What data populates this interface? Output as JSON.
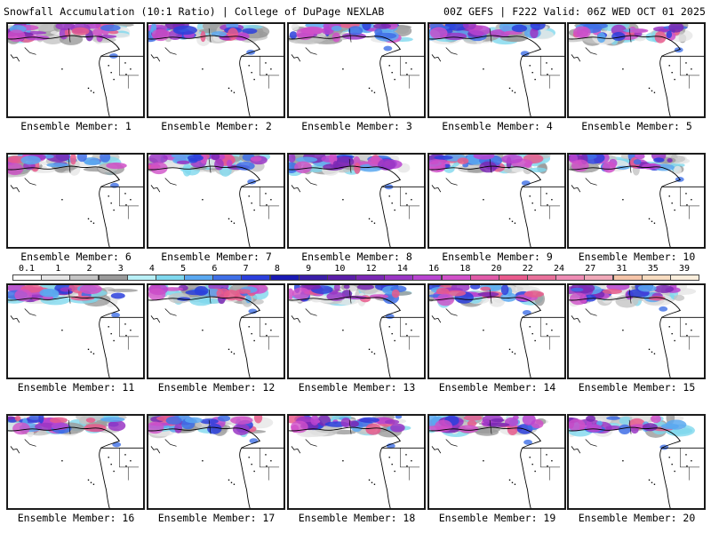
{
  "header": {
    "left_title": "Snowfall Accumulation (10:1 Ratio) | College of DuPage NEXLAB",
    "right_title": "00Z GEFS | F222 Valid: 06Z WED OCT 01 2025"
  },
  "panels": [
    {
      "member": "Ensemble Member: 1"
    },
    {
      "member": "Ensemble Member: 2"
    },
    {
      "member": "Ensemble Member: 3"
    },
    {
      "member": "Ensemble Member: 4"
    },
    {
      "member": "Ensemble Member: 5"
    },
    {
      "member": "Ensemble Member: 6"
    },
    {
      "member": "Ensemble Member: 7"
    },
    {
      "member": "Ensemble Member: 8"
    },
    {
      "member": "Ensemble Member: 9"
    },
    {
      "member": "Ensemble Member: 10"
    },
    {
      "member": "Ensemble Member: 11"
    },
    {
      "member": "Ensemble Member: 12"
    },
    {
      "member": "Ensemble Member: 13"
    },
    {
      "member": "Ensemble Member: 14"
    },
    {
      "member": "Ensemble Member: 15"
    },
    {
      "member": "Ensemble Member: 16"
    },
    {
      "member": "Ensemble Member: 17"
    },
    {
      "member": "Ensemble Member: 18"
    },
    {
      "member": "Ensemble Member: 19"
    },
    {
      "member": "Ensemble Member: 20"
    }
  ],
  "legend": {
    "labels": [
      "0.1",
      "1",
      "2",
      "3",
      "4",
      "5",
      "6",
      "7",
      "8",
      "9",
      "10",
      "12",
      "14",
      "16",
      "18",
      "20",
      "22",
      "24",
      "27",
      "31",
      "35",
      "39"
    ],
    "colors": [
      "#ffffff",
      "#e6e6e6",
      "#c4c4c4",
      "#9a9a9a",
      "#b9f0f7",
      "#7fd8ee",
      "#5aa8f0",
      "#3f6fe6",
      "#2b3fdc",
      "#1a1ab4",
      "#3a1ea8",
      "#5a1ea8",
      "#7a28b4",
      "#9a36c4",
      "#b844d0",
      "#d050c8",
      "#e05aa8",
      "#e85a8c",
      "#e8709a",
      "#ee8cb4",
      "#f0a8b8",
      "#f5c4a8",
      "#f8dcc0",
      "#fbeedc"
    ]
  }
}
